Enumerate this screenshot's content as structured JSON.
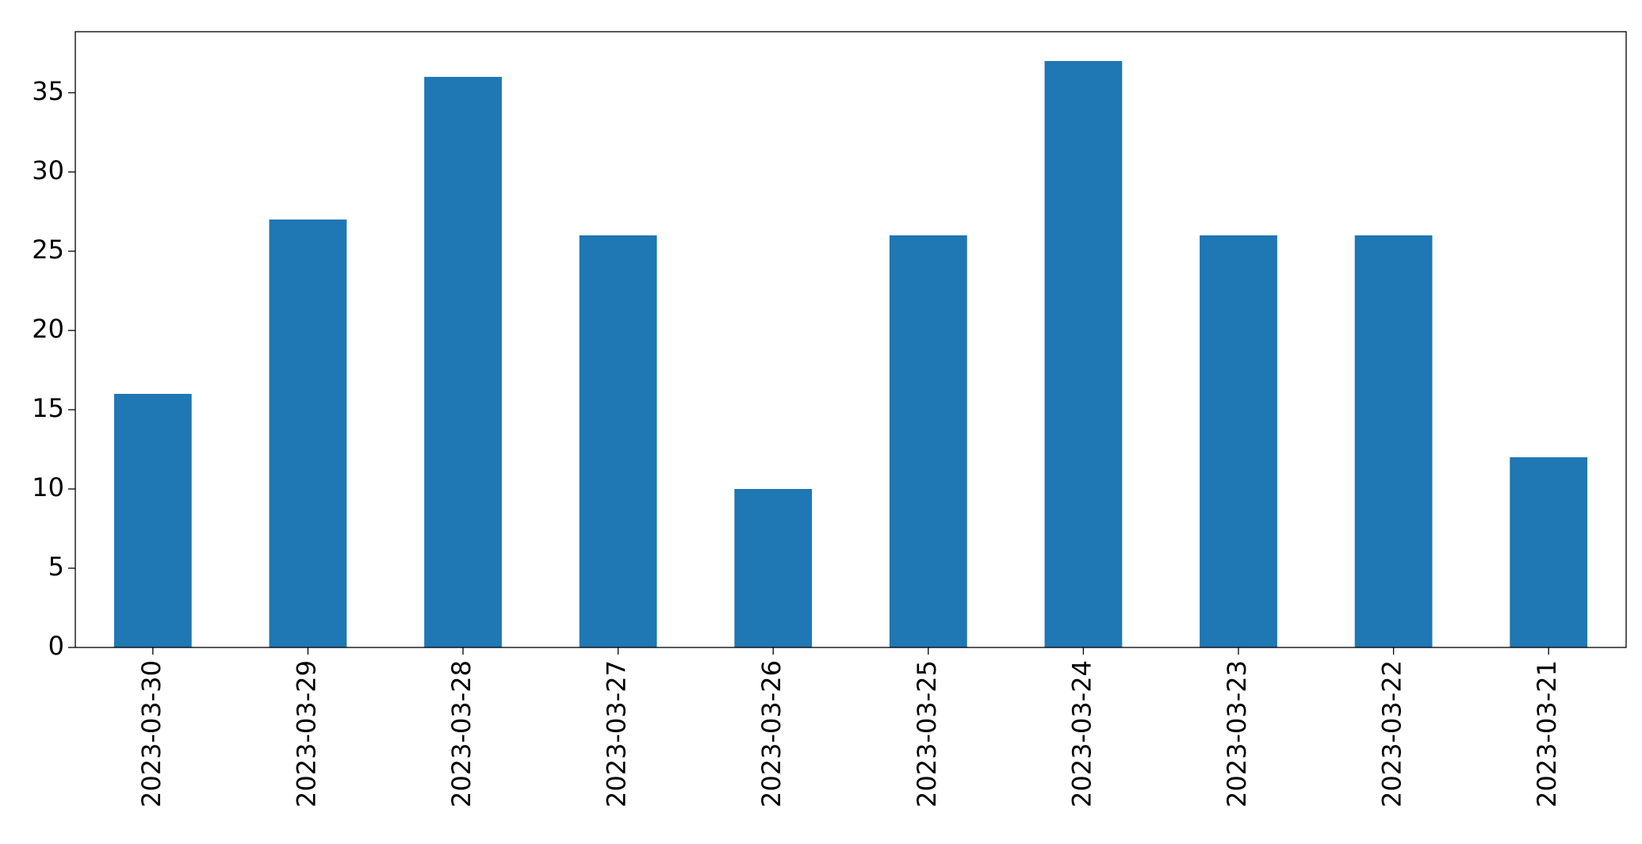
{
  "chart_data": {
    "type": "bar",
    "categories": [
      "2023-03-30",
      "2023-03-29",
      "2023-03-28",
      "2023-03-27",
      "2023-03-26",
      "2023-03-25",
      "2023-03-24",
      "2023-03-23",
      "2023-03-22",
      "2023-03-21"
    ],
    "values": [
      16,
      27,
      36,
      26,
      10,
      26,
      37,
      26,
      26,
      12
    ],
    "color": "#1f77b4",
    "ylim": [
      0,
      38.85
    ],
    "yticks": [
      0,
      5,
      10,
      15,
      20,
      25,
      30,
      35
    ],
    "grid": false
  }
}
